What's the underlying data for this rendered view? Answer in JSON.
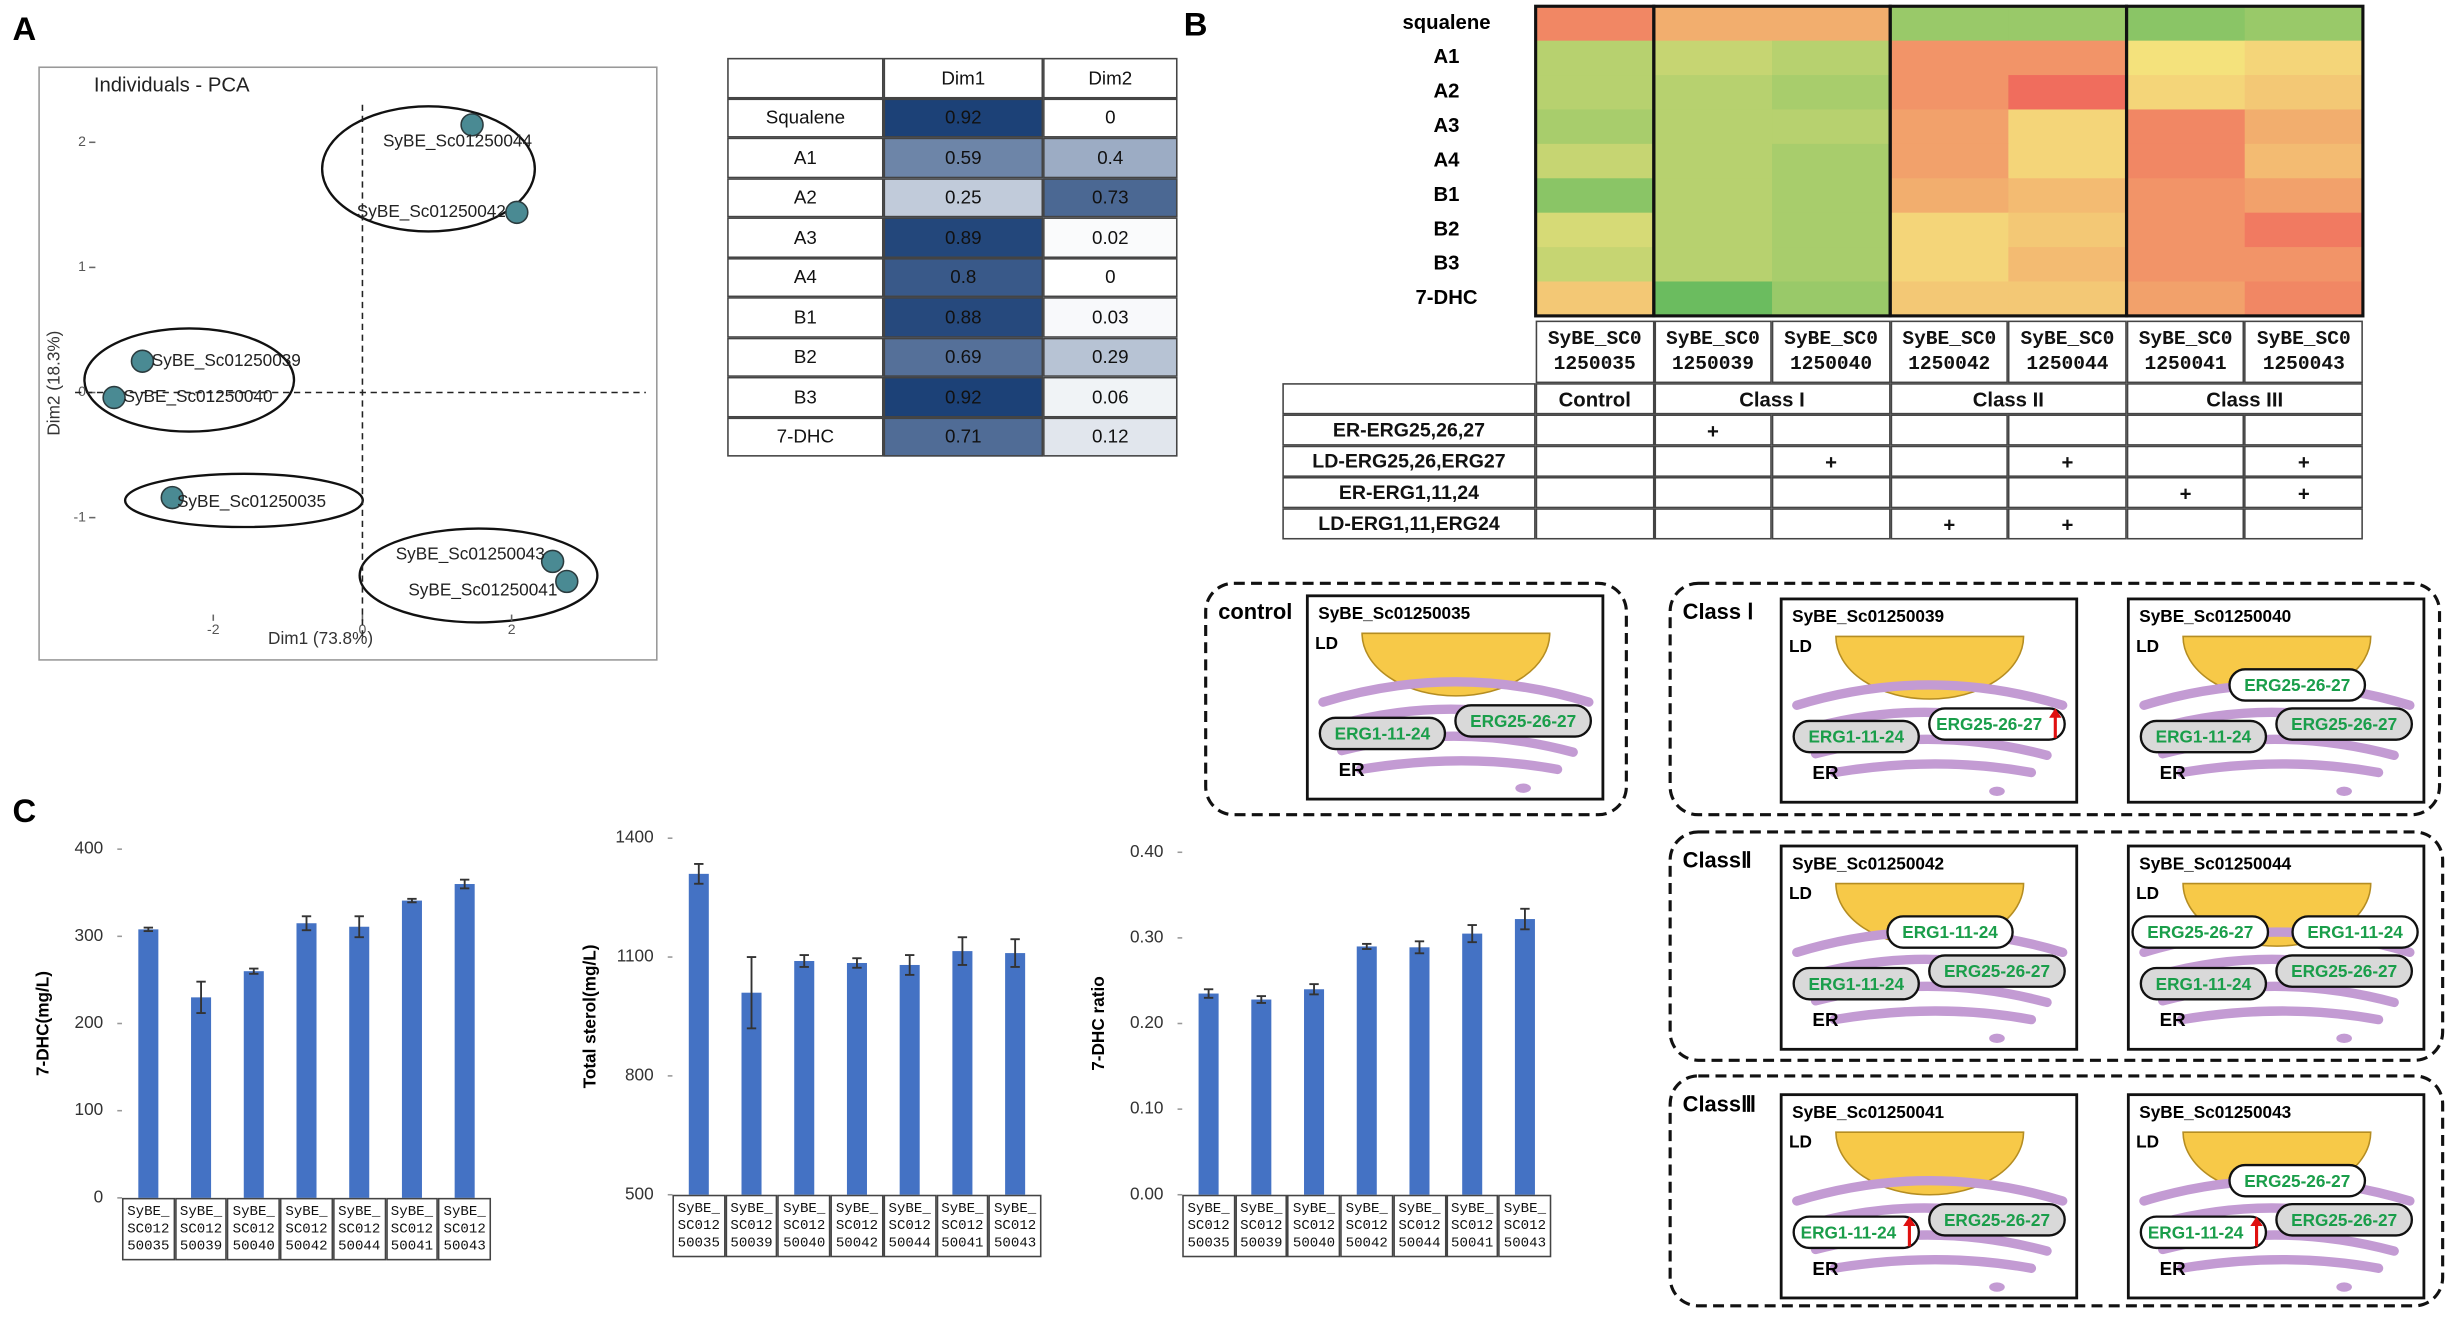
{
  "panel_labels": [
    "A",
    "B",
    "C"
  ],
  "chart_data": [
    {
      "type": "scatter",
      "title": "Individuals - PCA",
      "xlabel": "Dim1 (73.8%)",
      "ylabel": "Dim2 (18.3%)",
      "labels": [
        "SyBE_Sc01250044",
        "SyBE_Sc01250042",
        "SyBE_Sc01250039",
        "SyBE_Sc01250040",
        "SyBE_Sc01250035",
        "SyBE_Sc01250043",
        "SyBE_Sc01250041"
      ],
      "x": [
        1.47,
        2.07,
        -2.95,
        -3.33,
        -2.55,
        2.55,
        2.74
      ],
      "values": [
        2.14,
        1.44,
        0.25,
        -0.04,
        -0.84,
        -1.35,
        -1.51
      ],
      "color": "#4a8a93",
      "xlim": [
        -4.0,
        3.8
      ],
      "ylim": [
        -1.95,
        2.3
      ],
      "xticks": [
        -2,
        0,
        2
      ],
      "yticks": [
        -1,
        0,
        1,
        2
      ]
    },
    {
      "type": "heatmap",
      "rows": [
        "squalene",
        "A1",
        "A2",
        "A3",
        "A4",
        "B1",
        "B2",
        "B3",
        "7-DHC"
      ],
      "categories": [
        "SyBE_SC01250035",
        "SyBE_SC01250039",
        "SyBE_SC01250040",
        "SyBE_SC01250042",
        "SyBE_SC01250044",
        "SyBE_SC01250041",
        "SyBE_SC01250043"
      ],
      "values": [
        [
          0.85,
          0.7,
          0.7,
          0.2,
          0.2,
          0.15,
          0.2
        ],
        [
          0.3,
          0.35,
          0.3,
          0.8,
          0.8,
          0.5,
          0.55
        ],
        [
          0.3,
          0.3,
          0.25,
          0.8,
          0.95,
          0.55,
          0.6
        ],
        [
          0.25,
          0.3,
          0.3,
          0.75,
          0.55,
          0.85,
          0.7
        ],
        [
          0.35,
          0.3,
          0.25,
          0.75,
          0.55,
          0.85,
          0.65
        ],
        [
          0.15,
          0.3,
          0.25,
          0.7,
          0.65,
          0.8,
          0.75
        ],
        [
          0.4,
          0.3,
          0.25,
          0.55,
          0.6,
          0.8,
          0.9
        ],
        [
          0.35,
          0.3,
          0.25,
          0.55,
          0.65,
          0.8,
          0.8
        ],
        [
          0.6,
          0.05,
          0.2,
          0.6,
          0.6,
          0.75,
          0.85
        ]
      ],
      "zlim": [
        0,
        1
      ],
      "colorscale": [
        "#5cb85c",
        "#f4e27c",
        "#f0605a"
      ]
    },
    {
      "type": "bar",
      "ylabel": "7-DHC(mg/L)",
      "categories": [
        "SyBE_SC01250035",
        "SyBE_SC01250039",
        "SyBE_SC01250040",
        "SyBE_SC01250042",
        "SyBE_SC01250044",
        "SyBE_SC01250041",
        "SyBE_SC01250043"
      ],
      "values": [
        308,
        230,
        260,
        315,
        311,
        341,
        360
      ],
      "errors": [
        2,
        18,
        3,
        8,
        12,
        2,
        5
      ],
      "color": "#4472c4",
      "ylim": [
        0,
        400
      ],
      "yticks": [
        0,
        100,
        200,
        300,
        400
      ]
    },
    {
      "type": "bar",
      "ylabel": "Total sterol(mg/L)",
      "categories": [
        "SyBE_SC01250035",
        "SyBE_SC01250039",
        "SyBE_SC01250040",
        "SyBE_SC01250042",
        "SyBE_SC01250044",
        "SyBE_SC01250041",
        "SyBE_SC01250043"
      ],
      "values": [
        1310,
        1010,
        1090,
        1085,
        1080,
        1115,
        1110
      ],
      "errors": [
        25,
        90,
        15,
        12,
        25,
        35,
        35
      ],
      "color": "#4472c4",
      "ylim": [
        500,
        1400
      ],
      "yticks": [
        500,
        800,
        1100,
        1400
      ]
    },
    {
      "type": "bar",
      "ylabel": "7-DHC ratio",
      "categories": [
        "SyBE_SC01250035",
        "SyBE_SC01250039",
        "SyBE_SC01250040",
        "SyBE_SC01250042",
        "SyBE_SC01250044",
        "SyBE_SC01250041",
        "SyBE_SC01250043"
      ],
      "values": [
        0.235,
        0.228,
        0.24,
        0.29,
        0.289,
        0.305,
        0.322
      ],
      "errors": [
        0.005,
        0.004,
        0.006,
        0.003,
        0.007,
        0.01,
        0.012
      ],
      "color": "#4472c4",
      "ylim": [
        0,
        0.4
      ],
      "yticks": [
        {
          "value": 0,
          "label": "0.00"
        },
        {
          "value": 0.1,
          "label": "0.10"
        },
        {
          "value": 0.2,
          "label": "0.20"
        },
        {
          "value": 0.3,
          "label": "0.30"
        },
        {
          "value": 0.4,
          "label": "0.40"
        }
      ]
    }
  ],
  "loadings_table": {
    "columns": [
      "Dim1",
      "Dim2"
    ],
    "rows": [
      {
        "label": "Squalene",
        "values": [
          0.92,
          0
        ]
      },
      {
        "label": "A1",
        "values": [
          0.59,
          0.4
        ]
      },
      {
        "label": "A2",
        "values": [
          0.25,
          0.73
        ]
      },
      {
        "label": "A3",
        "values": [
          0.89,
          0.02
        ]
      },
      {
        "label": "A4",
        "values": [
          0.8,
          0
        ]
      },
      {
        "label": "B1",
        "values": [
          0.88,
          0.03
        ]
      },
      {
        "label": "B2",
        "values": [
          0.69,
          0.29
        ]
      },
      {
        "label": "B3",
        "values": [
          0.92,
          0.06
        ]
      },
      {
        "label": "7-DHC",
        "values": [
          0.71,
          0.12
        ]
      }
    ]
  },
  "strain_table": {
    "groups": [
      "Control",
      "Class I",
      "Class II",
      "Class III"
    ],
    "rows": [
      {
        "label": "ER-ERG25,26,27",
        "marks": [
          null,
          "+",
          null,
          null,
          null,
          null,
          null
        ]
      },
      {
        "label": "LD-ERG25,26,ERG27",
        "marks": [
          null,
          null,
          "+",
          null,
          "+",
          null,
          "+"
        ]
      },
      {
        "label": "ER-ERG1,11,24",
        "marks": [
          null,
          null,
          null,
          null,
          null,
          "+",
          "+"
        ]
      },
      {
        "label": "LD-ERG1,11,ERG24",
        "marks": [
          null,
          null,
          null,
          "+",
          "+",
          null,
          null
        ]
      }
    ]
  },
  "ld_label": "LD",
  "er_label": "ER",
  "diagrams": [
    {
      "label": "control",
      "panels": [
        {
          "title": "SyBE_Sc01250035",
          "tags": [
            {
              "text": "ERG1-11-24",
              "site": "ER"
            },
            {
              "text": "ERG25-26-27",
              "site": "ER"
            }
          ]
        }
      ]
    },
    {
      "label": "Class Ⅰ",
      "panels": [
        {
          "title": "SyBE_Sc01250039",
          "tags": [
            {
              "text": "ERG1-11-24",
              "site": "ER"
            },
            {
              "text": "ERG25-26-27",
              "site": "ER",
              "up": true
            }
          ]
        },
        {
          "title": "SyBE_Sc01250040",
          "tags": [
            {
              "text": "ERG25-26-27",
              "site": "LD"
            },
            {
              "text": "ERG1-11-24",
              "site": "ER"
            },
            {
              "text": "ERG25-26-27",
              "site": "ER"
            }
          ]
        }
      ]
    },
    {
      "label": "ClassⅡ",
      "panels": [
        {
          "title": "SyBE_Sc01250042",
          "tags": [
            {
              "text": "ERG1-11-24",
              "site": "LD"
            },
            {
              "text": "ERG1-11-24",
              "site": "ER"
            },
            {
              "text": "ERG25-26-27",
              "site": "ER"
            }
          ]
        },
        {
          "title": "SyBE_Sc01250044",
          "tags": [
            {
              "text": "ERG25-26-27",
              "site": "LD"
            },
            {
              "text": "ERG1-11-24",
              "site": "LD"
            },
            {
              "text": "ERG1-11-24",
              "site": "ER"
            },
            {
              "text": "ERG25-26-27",
              "site": "ER"
            }
          ]
        }
      ]
    },
    {
      "label": "ClassⅢ",
      "panels": [
        {
          "title": "SyBE_Sc01250041",
          "tags": [
            {
              "text": "ERG1-11-24",
              "site": "ER",
              "up": true
            },
            {
              "text": "ERG25-26-27",
              "site": "ER"
            }
          ]
        },
        {
          "title": "SyBE_Sc01250043",
          "tags": [
            {
              "text": "ERG25-26-27",
              "site": "LD"
            },
            {
              "text": "ERG1-11-24",
              "site": "ER",
              "up": true
            },
            {
              "text": "ERG25-26-27",
              "site": "ER"
            }
          ]
        }
      ]
    }
  ]
}
